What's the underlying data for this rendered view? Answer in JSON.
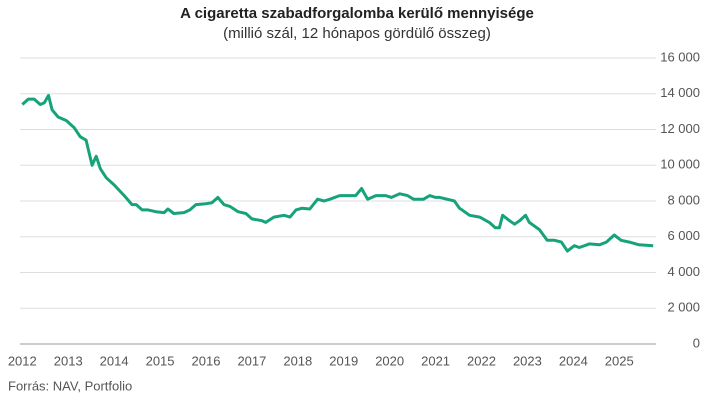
{
  "chart_data": {
    "type": "line",
    "title": "A cigaretta szabadforgalomba kerülő mennyisége",
    "subtitle": "(millió szál, 12 hónapos gördülő összeg)",
    "source": "Forrás: NAV, Portfolio",
    "x": [
      2012.0,
      2012.13,
      2012.26,
      2012.39,
      2012.48,
      2012.57,
      2012.65,
      2012.78,
      2012.96,
      2013.13,
      2013.26,
      2013.39,
      2013.52,
      2013.61,
      2013.7,
      2013.83,
      2014.0,
      2014.22,
      2014.39,
      2014.48,
      2014.61,
      2014.74,
      2014.91,
      2015.09,
      2015.17,
      2015.3,
      2015.52,
      2015.65,
      2015.78,
      2016.0,
      2016.13,
      2016.26,
      2016.39,
      2016.52,
      2016.7,
      2016.87,
      2017.0,
      2017.22,
      2017.3,
      2017.48,
      2017.7,
      2017.83,
      2017.96,
      2018.09,
      2018.26,
      2018.43,
      2018.57,
      2018.7,
      2018.91,
      2019.26,
      2019.39,
      2019.52,
      2019.7,
      2019.91,
      2020.04,
      2020.22,
      2020.39,
      2020.52,
      2020.74,
      2020.87,
      2021.0,
      2021.09,
      2021.41,
      2021.52,
      2021.74,
      2021.96,
      2022.17,
      2022.3,
      2022.39,
      2022.46,
      2022.61,
      2022.72,
      2022.83,
      2022.96,
      2023.04,
      2023.26,
      2023.43,
      2023.59,
      2023.74,
      2023.87,
      2024.02,
      2024.13,
      2024.35,
      2024.57,
      2024.72,
      2024.89,
      2025.04,
      2025.22,
      2025.43,
      2025.74
    ],
    "series": [
      {
        "name": "Cigaretta",
        "color": "#16a37a",
        "values": [
          13400,
          13700,
          13700,
          13400,
          13500,
          13900,
          13100,
          12700,
          12500,
          12100,
          11600,
          11400,
          10000,
          10500,
          9800,
          9300,
          8900,
          8300,
          7800,
          7800,
          7500,
          7500,
          7400,
          7350,
          7550,
          7300,
          7350,
          7500,
          7800,
          7850,
          7900,
          8200,
          7800,
          7700,
          7400,
          7300,
          7000,
          6900,
          6800,
          7100,
          7200,
          7100,
          7500,
          7600,
          7550,
          8100,
          8000,
          8100,
          8300,
          8300,
          8700,
          8100,
          8300,
          8300,
          8200,
          8400,
          8300,
          8100,
          8100,
          8300,
          8200,
          8200,
          8000,
          7600,
          7200,
          7100,
          6800,
          6500,
          6500,
          7200,
          6900,
          6700,
          6900,
          7200,
          6800,
          6400,
          5800,
          5800,
          5700,
          5200,
          5500,
          5400,
          5600,
          5550,
          5700,
          6100,
          5800,
          5700,
          5550,
          5500
        ]
      }
    ],
    "xlim": [
      2011.95,
      2025.8
    ],
    "xticks": [
      2012,
      2013,
      2014,
      2015,
      2016,
      2017,
      2018,
      2019,
      2020,
      2021,
      2022,
      2023,
      2024,
      2025
    ],
    "ylim": [
      0,
      16000
    ],
    "yticks": [
      0,
      {
        "value": 2000,
        "label": "2 000"
      },
      {
        "value": 4000,
        "label": "4 000"
      },
      {
        "value": 6000,
        "label": "6 000"
      },
      {
        "value": 8000,
        "label": "8 000"
      },
      {
        "value": 10000,
        "label": "10 000"
      },
      {
        "value": 12000,
        "label": "12 000"
      },
      {
        "value": 14000,
        "label": "14 000"
      },
      {
        "value": 16000,
        "label": "16 000"
      }
    ],
    "grid": true
  }
}
